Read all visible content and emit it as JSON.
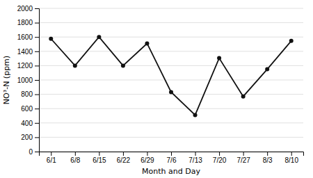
{
  "chart_data": {
    "type": "line",
    "categories": [
      "6/1",
      "6/8",
      "6/15",
      "6/22",
      "6/29",
      "7/6",
      "7/13",
      "7/20",
      "7/27",
      "8/3",
      "8/10"
    ],
    "values": [
      1575,
      1200,
      1600,
      1200,
      1510,
      830,
      510,
      1305,
      770,
      1150,
      1545
    ],
    "xlabel": "Month and Day",
    "ylabel": "NO³-N (ppm)",
    "ylim": [
      0,
      2000
    ],
    "yticks": [
      0,
      200,
      400,
      600,
      800,
      1000,
      1200,
      1400,
      1600,
      1800,
      2000
    ],
    "grid": true,
    "color": "#111111",
    "marker": "circle"
  }
}
